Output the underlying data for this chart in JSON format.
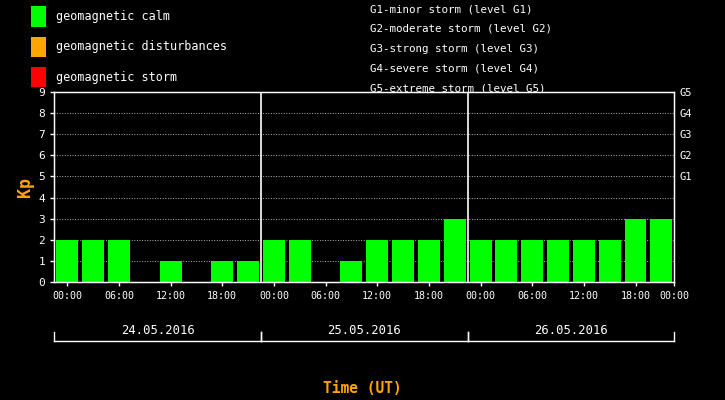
{
  "bg": "#000000",
  "bar_green": "#00ff00",
  "bar_orange": "#ffa500",
  "bar_red": "#ff0000",
  "white": "#ffffff",
  "orange_label": "#ffa500",
  "kp_values": [
    2,
    2,
    2,
    0,
    1,
    0,
    1,
    1,
    2,
    2,
    0,
    1,
    2,
    2,
    2,
    3,
    2,
    2,
    2,
    2,
    2,
    2,
    3,
    3
  ],
  "legend1": [
    {
      "color": "#00ff00",
      "label": "geomagnetic calm"
    },
    {
      "color": "#ffa500",
      "label": "geomagnetic disturbances"
    },
    {
      "color": "#ff0000",
      "label": "geomagnetic storm"
    }
  ],
  "legend2": [
    "G1-minor storm (level G1)",
    "G2-moderate storm (level G2)",
    "G3-strong storm (level G3)",
    "G4-severe storm (level G4)",
    "G5-extreme storm (level G5)"
  ],
  "day_labels": [
    "24.05.2016",
    "25.05.2016",
    "26.05.2016"
  ],
  "xtick_labels": [
    "00:00",
    "06:00",
    "12:00",
    "18:00",
    "00:00",
    "06:00",
    "12:00",
    "18:00",
    "00:00",
    "06:00",
    "12:00",
    "18:00",
    "00:00"
  ],
  "yticks": [
    0,
    1,
    2,
    3,
    4,
    5,
    6,
    7,
    8,
    9
  ],
  "right_yticks": [
    5,
    6,
    7,
    8,
    9
  ],
  "right_yticklabels": [
    "G1",
    "G2",
    "G3",
    "G4",
    "G5"
  ],
  "ylim": [
    0,
    9
  ],
  "ylabel": "Kp",
  "xlabel": "Time (UT)",
  "bar_width": 0.85,
  "n_bars": 24,
  "bars_per_day": 8
}
